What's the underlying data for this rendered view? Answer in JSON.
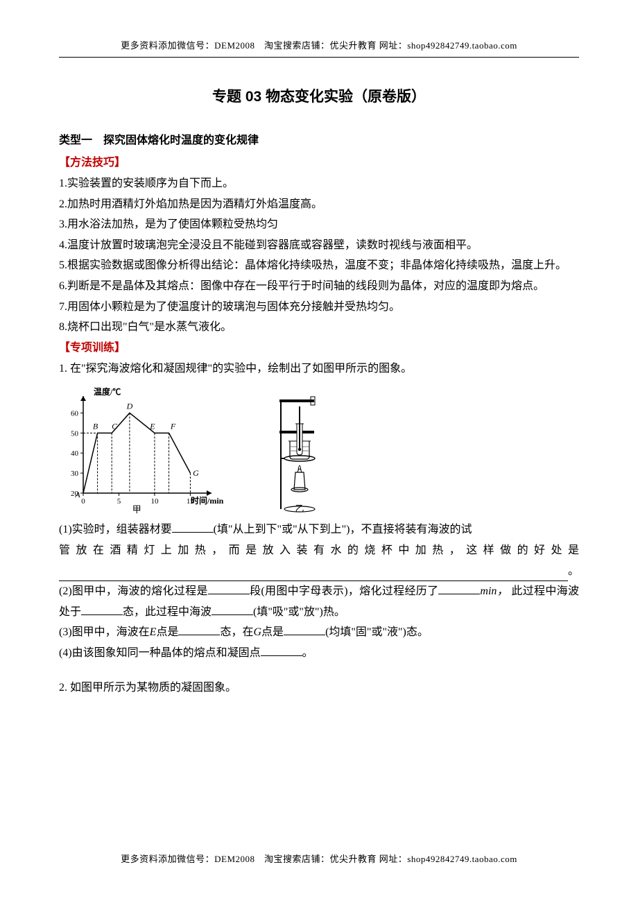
{
  "header_text": "更多资料添加微信号：DEM2008　淘宝搜索店铺：优尖升教育  网址：shop492842749.taobao.com",
  "footer_text": "更多资料添加微信号：DEM2008　淘宝搜索店铺：优尖升教育  网址：shop492842749.taobao.com",
  "title": "专题 03  物态变化实验（原卷版）",
  "section1_heading": "类型一　探究固体熔化时温度的变化规律",
  "method_label": "【方法技巧】",
  "methods": {
    "m1": "1.实验装置的安装顺序为自下而上。",
    "m2": "2.加热时用酒精灯外焰加热是因为酒精灯外焰温度高。",
    "m3": "3.用水浴法加热，是为了使固体颗粒受热均匀",
    "m4": "4.温度计放置时玻璃泡完全浸没且不能碰到容器底或容器壁，读数时视线与液面相平。",
    "m5": "5.根据实验数据或图像分析得出结论：晶体熔化持续吸热，温度不变；非晶体熔化持续吸热，温度上升。",
    "m6": "6.判断是不是晶体及其熔点：图像中存在一段平行于时间轴的线段则为晶体，对应的温度即为熔点。",
    "m7": "7.用固体小颗粒是为了使温度计的玻璃泡与固体充分接触并受热均匀。",
    "m8": "8.烧杯口出现\"白气\"是水蒸气液化。"
  },
  "training_label": "【专项训练】",
  "q1": {
    "stem": "1. 在\"探究海波熔化和凝固规律\"的实验中，绘制出了如图甲所示的图象。",
    "p1_a": "(1)实验时，组装器材要",
    "p1_b": "(填\"从上到下\"或\"从下到上\")，不直接将装有海波的试",
    "p1_c": "管放在酒精灯上加热，而是放入装有水的烧杯中加热，这样做的好处是",
    "p1_end": "。",
    "p2_a": "(2)图甲中，海波的熔化过程是",
    "p2_b": "段(用图中字母表示)，熔化过程经历了",
    "p2_c": "此过程中海波处于",
    "p2_d": "态，此过程中海波",
    "p2_e": "(填\"吸\"或\"放\")热。",
    "unit_min": "min，",
    "p3_a": "(3)图甲中，海波在",
    "p3_e": "E",
    "p3_b": "点是",
    "p3_c": "态，在",
    "p3_g": "G",
    "p3_d": "点是",
    "p3_f": "(均填\"固\"或\"液\")态。",
    "p4_a": "(4)由该图象知同一种晶体的熔点和凝固点",
    "p4_b": "。"
  },
  "q2": {
    "stem": "2. 如图甲所示为某物质的凝固图象。"
  },
  "chart": {
    "type": "line",
    "y_label": "温度/℃",
    "x_label": "时间/min",
    "caption_left": "甲",
    "caption_right": "乙",
    "y_ticks": [
      20,
      30,
      40,
      50,
      60
    ],
    "x_ticks": [
      0,
      5,
      10,
      15
    ],
    "points": {
      "A": {
        "x": 0,
        "y": 20,
        "label": "A"
      },
      "B": {
        "x": 2,
        "y": 50,
        "label": "B"
      },
      "C": {
        "x": 4,
        "y": 50,
        "label": "C"
      },
      "D": {
        "x": 6.5,
        "y": 60,
        "label": "D"
      },
      "E": {
        "x": 10,
        "y": 50,
        "label": "E"
      },
      "F": {
        "x": 12,
        "y": 50,
        "label": "F"
      },
      "G": {
        "x": 15,
        "y": 30,
        "label": "G"
      }
    },
    "colors": {
      "axis": "#000000",
      "line": "#000000",
      "dashed": "#000000",
      "text": "#000000",
      "bg": "#ffffff"
    },
    "line_width": 1.5,
    "font_size_axis": 11,
    "font_size_label": 12
  }
}
